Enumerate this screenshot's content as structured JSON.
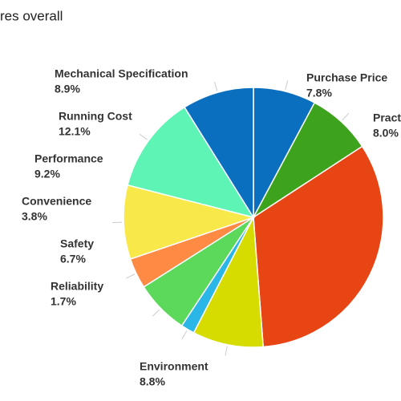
{
  "chart_data": {
    "type": "pie",
    "title": "res overall",
    "categories": [
      "Purchase Price",
      "Pract",
      null,
      "Environment",
      "Reliability",
      "Safety",
      "Convenience",
      "Performance",
      "Running Cost",
      "Mechanical Specification"
    ],
    "values": [
      7.8,
      8.0,
      33.0,
      8.8,
      1.7,
      6.7,
      3.8,
      9.2,
      12.1,
      8.9
    ],
    "value_labels": [
      "7.8%",
      "8.0%",
      null,
      "8.8%",
      "1.7%",
      "6.7%",
      "3.8%",
      "9.2%",
      "12.1%",
      "8.9%"
    ],
    "colors": [
      "#0b6fbf",
      "#3ea31c",
      "#e84514",
      "#d6dc00",
      "#2ab6e6",
      "#5cd85a",
      "#ff8a44",
      "#f8e84a",
      "#5ef4b6",
      "#0b6fbf"
    ]
  }
}
